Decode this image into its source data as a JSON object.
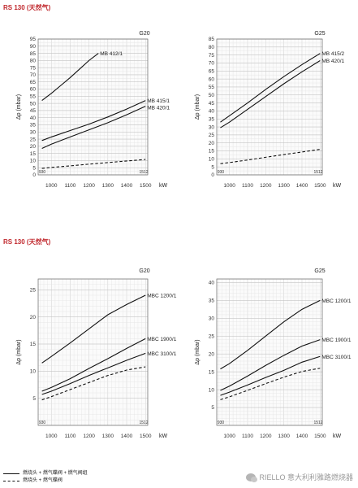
{
  "sections": [
    {
      "title": "RS 130 (天然气)"
    },
    {
      "title": "RS 130 (天然气)"
    }
  ],
  "chart_data": [
    {
      "type": "line",
      "gas": "G20",
      "xlabel": "kW",
      "ylabel": "Δp (mbar)",
      "xlim": [
        930,
        1512
      ],
      "ylim": [
        0,
        95
      ],
      "xticks": [
        1000,
        1100,
        1200,
        1300,
        1400,
        1500
      ],
      "yticks": [
        0,
        5,
        10,
        15,
        20,
        25,
        30,
        35,
        40,
        45,
        50,
        55,
        60,
        65,
        70,
        75,
        80,
        85,
        90,
        95
      ],
      "minmax_labels": [
        "930",
        "1512"
      ],
      "grid": true,
      "series": [
        {
          "name": "MB 412/1",
          "style": "solid",
          "x": [
            950,
            1000,
            1050,
            1100,
            1150,
            1200,
            1250
          ],
          "y": [
            52,
            57,
            62.5,
            68,
            74,
            80,
            85
          ]
        },
        {
          "name": "MB 415/1",
          "style": "solid",
          "x": [
            950,
            1000,
            1100,
            1200,
            1300,
            1400,
            1500
          ],
          "y": [
            24,
            26.5,
            31,
            35.5,
            40.5,
            46,
            52
          ]
        },
        {
          "name": "MB 420/1",
          "style": "solid",
          "x": [
            950,
            1000,
            1100,
            1200,
            1300,
            1400,
            1500
          ],
          "y": [
            18.5,
            21.5,
            26.5,
            31.5,
            36.5,
            42,
            48
          ]
        },
        {
          "name": "",
          "style": "dashed",
          "x": [
            950,
            1000,
            1100,
            1200,
            1300,
            1400,
            1500
          ],
          "y": [
            4.5,
            5.2,
            6.3,
            7.5,
            8.6,
            9.7,
            10.8
          ]
        }
      ]
    },
    {
      "type": "line",
      "gas": "G25",
      "xlabel": "kW",
      "ylabel": "Δp (mbar)",
      "xlim": [
        930,
        1512
      ],
      "ylim": [
        0,
        85
      ],
      "xticks": [
        1000,
        1100,
        1200,
        1300,
        1400,
        1500
      ],
      "yticks": [
        0,
        5,
        10,
        15,
        20,
        25,
        30,
        35,
        40,
        45,
        50,
        55,
        60,
        65,
        70,
        75,
        80,
        85
      ],
      "minmax_labels": [
        "930",
        "1512"
      ],
      "grid": true,
      "series": [
        {
          "name": "MB 415/2",
          "style": "solid",
          "x": [
            950,
            1000,
            1100,
            1200,
            1300,
            1400,
            1500
          ],
          "y": [
            33,
            37,
            45,
            53.5,
            61.5,
            69,
            76
          ]
        },
        {
          "name": "MB 420/1",
          "style": "solid",
          "x": [
            950,
            1000,
            1100,
            1200,
            1300,
            1400,
            1500
          ],
          "y": [
            29.5,
            33,
            41,
            49,
            57,
            64.5,
            71.5
          ]
        },
        {
          "name": "",
          "style": "dashed",
          "x": [
            950,
            1000,
            1100,
            1200,
            1300,
            1400,
            1500
          ],
          "y": [
            7,
            7.7,
            9.3,
            11,
            12.7,
            14.3,
            16
          ]
        }
      ]
    },
    {
      "type": "line",
      "gas": "G20",
      "xlabel": "kW",
      "ylabel": "Δp (mbar)",
      "xlim": [
        930,
        1512
      ],
      "ylim": [
        0,
        27
      ],
      "xticks": [
        1000,
        1100,
        1200,
        1300,
        1400,
        1500
      ],
      "yticks": [
        5,
        10,
        15,
        20,
        25
      ],
      "minmax_labels": [
        "930",
        "1512"
      ],
      "grid": true,
      "series": [
        {
          "name": "MBC 1200/1",
          "style": "solid",
          "x": [
            950,
            1000,
            1100,
            1200,
            1300,
            1400,
            1500
          ],
          "y": [
            11.5,
            12.7,
            15.2,
            17.8,
            20.4,
            22.3,
            24
          ]
        },
        {
          "name": "MBC 1900/1",
          "style": "solid",
          "x": [
            950,
            1000,
            1100,
            1200,
            1300,
            1400,
            1500
          ],
          "y": [
            6.3,
            7,
            8.6,
            10.5,
            12.3,
            14.2,
            16
          ]
        },
        {
          "name": "MBC 3100/1",
          "style": "solid",
          "x": [
            950,
            1000,
            1100,
            1200,
            1300,
            1400,
            1500
          ],
          "y": [
            5.7,
            6.3,
            7.7,
            9.2,
            10.6,
            12,
            13.3
          ]
        },
        {
          "name": "",
          "style": "dashed",
          "x": [
            950,
            1000,
            1100,
            1200,
            1300,
            1400,
            1500
          ],
          "y": [
            4.7,
            5.3,
            6.6,
            7.9,
            9.2,
            10.2,
            10.8
          ]
        }
      ]
    },
    {
      "type": "line",
      "gas": "G25",
      "xlabel": "kW",
      "ylabel": "Δp (mbar)",
      "xlim": [
        930,
        1512
      ],
      "ylim": [
        0,
        41
      ],
      "xticks": [
        1000,
        1100,
        1200,
        1300,
        1400,
        1500
      ],
      "yticks": [
        5,
        10,
        15,
        20,
        25,
        30,
        35,
        40
      ],
      "minmax_labels": [
        "930",
        "1512"
      ],
      "grid": true,
      "series": [
        {
          "name": "MBC 1200/1",
          "style": "solid",
          "x": [
            950,
            1000,
            1100,
            1200,
            1300,
            1400,
            1500
          ],
          "y": [
            15.8,
            17.3,
            21,
            25,
            29,
            32.5,
            35
          ]
        },
        {
          "name": "MBC 1900/1",
          "style": "solid",
          "x": [
            950,
            1000,
            1100,
            1200,
            1300,
            1400,
            1500
          ],
          "y": [
            9.8,
            11,
            13.8,
            16.8,
            19.6,
            22.2,
            24
          ]
        },
        {
          "name": "MBC 3100/1",
          "style": "solid",
          "x": [
            950,
            1000,
            1100,
            1200,
            1300,
            1400,
            1500
          ],
          "y": [
            8.4,
            9.3,
            11.3,
            13.4,
            15.4,
            17.7,
            19.3
          ]
        },
        {
          "name": "",
          "style": "dashed",
          "x": [
            950,
            1000,
            1100,
            1200,
            1300,
            1400,
            1500
          ],
          "y": [
            7.2,
            8,
            9.8,
            11.7,
            13.5,
            15.1,
            16
          ]
        }
      ]
    }
  ],
  "legend": {
    "solid_label": "燃烧头 + 燃气蝶阀 + 燃气阀组",
    "dashed_label": "燃烧头 + 燃气蝶阀"
  },
  "watermark": {
    "icon": "wechat-icon",
    "text": "RIELLO 意大利利雅路燃烧器"
  }
}
